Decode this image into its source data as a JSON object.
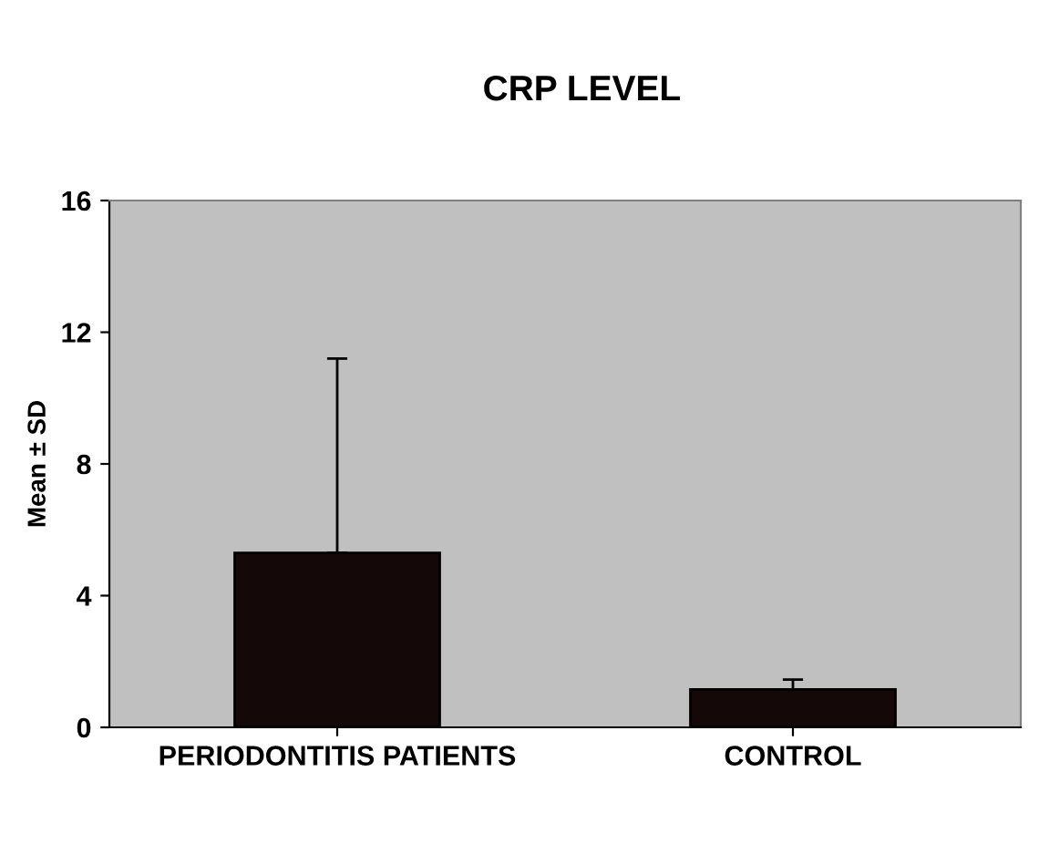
{
  "chart_data": {
    "type": "bar",
    "title": "CRP LEVEL",
    "ylabel": "Mean ± SD",
    "categories": [
      "PERIODONTITIS PATIENTS",
      "CONTROL"
    ],
    "values": [
      5.3,
      1.15
    ],
    "errors": [
      [
        5.3,
        11.2
      ],
      [
        1.15,
        1.45
      ]
    ],
    "color": "#140808",
    "ylim": [
      0,
      16
    ],
    "yticks": [
      0,
      4,
      8,
      12,
      16
    ],
    "grid": false,
    "legend": false
  }
}
